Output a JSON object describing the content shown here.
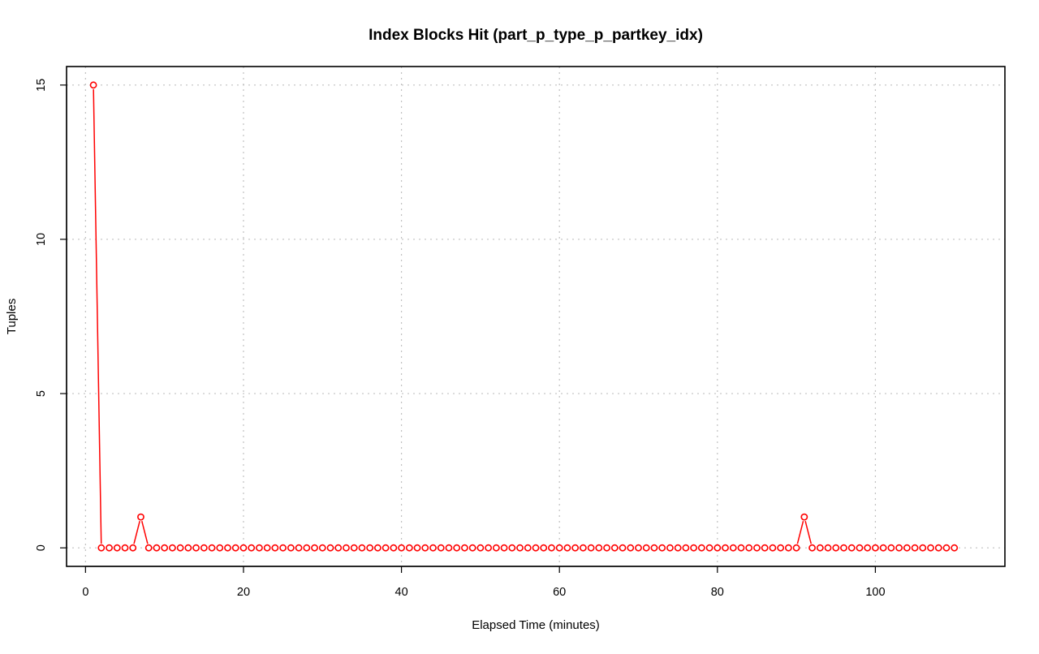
{
  "chart_data": {
    "type": "line",
    "title": "Index Blocks Hit (part_p_type_p_partkey_idx)",
    "xlabel": "Elapsed Time (minutes)",
    "ylabel": "Tuples",
    "x_ticks": [
      0,
      20,
      40,
      60,
      80,
      100
    ],
    "y_ticks": [
      0,
      5,
      10,
      15
    ],
    "xlim": [
      -2.4,
      116.4
    ],
    "ylim": [
      -0.6,
      15.6
    ],
    "grid": true,
    "markers": "open-circle",
    "colors": {
      "series": "#ff0000",
      "grid": "#c0c0c0",
      "frame": "#000000"
    },
    "series": [
      {
        "x": [
          1,
          2,
          3,
          4,
          5,
          6,
          7,
          8,
          9,
          10,
          11,
          12,
          13,
          14,
          15,
          16,
          17,
          18,
          19,
          20,
          21,
          22,
          23,
          24,
          25,
          26,
          27,
          28,
          29,
          30,
          31,
          32,
          33,
          34,
          35,
          36,
          37,
          38,
          39,
          40,
          41,
          42,
          43,
          44,
          45,
          46,
          47,
          48,
          49,
          50,
          51,
          52,
          53,
          54,
          55,
          56,
          57,
          58,
          59,
          60,
          61,
          62,
          63,
          64,
          65,
          66,
          67,
          68,
          69,
          70,
          71,
          72,
          73,
          74,
          75,
          76,
          77,
          78,
          79,
          80,
          81,
          82,
          83,
          84,
          85,
          86,
          87,
          88,
          89,
          90,
          91,
          92,
          93,
          94,
          95,
          96,
          97,
          98,
          99,
          100,
          101,
          102,
          103,
          104,
          105,
          106,
          107,
          108,
          109,
          110
        ],
        "values": [
          15,
          0,
          0,
          0,
          0,
          0,
          1,
          0,
          0,
          0,
          0,
          0,
          0,
          0,
          0,
          0,
          0,
          0,
          0,
          0,
          0,
          0,
          0,
          0,
          0,
          0,
          0,
          0,
          0,
          0,
          0,
          0,
          0,
          0,
          0,
          0,
          0,
          0,
          0,
          0,
          0,
          0,
          0,
          0,
          0,
          0,
          0,
          0,
          0,
          0,
          0,
          0,
          0,
          0,
          0,
          0,
          0,
          0,
          0,
          0,
          0,
          0,
          0,
          0,
          0,
          0,
          0,
          0,
          0,
          0,
          0,
          0,
          0,
          0,
          0,
          0,
          0,
          0,
          0,
          0,
          0,
          0,
          0,
          0,
          0,
          0,
          0,
          0,
          0,
          0,
          1,
          0,
          0,
          0,
          0,
          0,
          0,
          0,
          0,
          0,
          0,
          0,
          0,
          0,
          0,
          0,
          0,
          0,
          0,
          0
        ]
      }
    ]
  }
}
